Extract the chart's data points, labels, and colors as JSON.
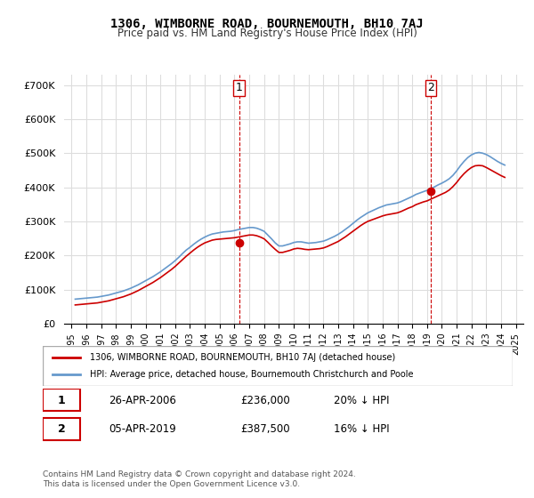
{
  "title": "1306, WIMBORNE ROAD, BOURNEMOUTH, BH10 7AJ",
  "subtitle": "Price paid vs. HM Land Registry's House Price Index (HPI)",
  "ylabel_ticks": [
    "£0",
    "£100K",
    "£200K",
    "£300K",
    "£400K",
    "£500K",
    "£600K",
    "£700K"
  ],
  "ytick_values": [
    0,
    100000,
    200000,
    300000,
    400000,
    500000,
    600000,
    700000
  ],
  "ylim": [
    0,
    730000
  ],
  "xlim_start": 1994.5,
  "xlim_end": 2025.5,
  "hpi_years": [
    1995.25,
    1995.5,
    1995.75,
    1996.0,
    1996.25,
    1996.5,
    1996.75,
    1997.0,
    1997.25,
    1997.5,
    1997.75,
    1998.0,
    1998.25,
    1998.5,
    1998.75,
    1999.0,
    1999.25,
    1999.5,
    1999.75,
    2000.0,
    2000.25,
    2000.5,
    2000.75,
    2001.0,
    2001.25,
    2001.5,
    2001.75,
    2002.0,
    2002.25,
    2002.5,
    2002.75,
    2003.0,
    2003.25,
    2003.5,
    2003.75,
    2004.0,
    2004.25,
    2004.5,
    2004.75,
    2005.0,
    2005.25,
    2005.5,
    2005.75,
    2006.0,
    2006.25,
    2006.5,
    2006.75,
    2007.0,
    2007.25,
    2007.5,
    2007.75,
    2008.0,
    2008.25,
    2008.5,
    2008.75,
    2009.0,
    2009.25,
    2009.5,
    2009.75,
    2010.0,
    2010.25,
    2010.5,
    2010.75,
    2011.0,
    2011.25,
    2011.5,
    2011.75,
    2012.0,
    2012.25,
    2012.5,
    2012.75,
    2013.0,
    2013.25,
    2013.5,
    2013.75,
    2014.0,
    2014.25,
    2014.5,
    2014.75,
    2015.0,
    2015.25,
    2015.5,
    2015.75,
    2016.0,
    2016.25,
    2016.5,
    2016.75,
    2017.0,
    2017.25,
    2017.5,
    2017.75,
    2018.0,
    2018.25,
    2018.5,
    2018.75,
    2019.0,
    2019.25,
    2019.5,
    2019.75,
    2020.0,
    2020.25,
    2020.5,
    2020.75,
    2021.0,
    2021.25,
    2021.5,
    2021.75,
    2022.0,
    2022.25,
    2022.5,
    2022.75,
    2023.0,
    2023.25,
    2023.5,
    2023.75,
    2024.0,
    2024.25
  ],
  "hpi_values": [
    72000,
    73000,
    74000,
    75000,
    76000,
    77000,
    78000,
    80000,
    82000,
    84000,
    87000,
    90000,
    93000,
    96000,
    100000,
    104000,
    109000,
    114000,
    120000,
    126000,
    132000,
    138000,
    145000,
    152000,
    160000,
    168000,
    176000,
    185000,
    195000,
    206000,
    216000,
    224000,
    233000,
    241000,
    248000,
    254000,
    259000,
    263000,
    265000,
    267000,
    269000,
    270000,
    271000,
    273000,
    276000,
    278000,
    280000,
    282000,
    282000,
    280000,
    276000,
    271000,
    260000,
    249000,
    237000,
    228000,
    228000,
    231000,
    234000,
    238000,
    240000,
    240000,
    238000,
    236000,
    237000,
    238000,
    240000,
    242000,
    246000,
    251000,
    256000,
    262000,
    269000,
    277000,
    285000,
    294000,
    303000,
    311000,
    318000,
    325000,
    330000,
    335000,
    340000,
    344000,
    348000,
    350000,
    352000,
    354000,
    358000,
    363000,
    368000,
    373000,
    379000,
    383000,
    387000,
    391000,
    396000,
    401000,
    407000,
    412000,
    418000,
    425000,
    435000,
    448000,
    463000,
    476000,
    487000,
    495000,
    500000,
    502000,
    500000,
    496000,
    490000,
    483000,
    476000,
    470000,
    465000
  ],
  "property_years": [
    1995.25,
    1995.5,
    1995.75,
    1996.0,
    1996.25,
    1996.5,
    1996.75,
    1997.0,
    1997.25,
    1997.5,
    1997.75,
    1998.0,
    1998.25,
    1998.5,
    1998.75,
    1999.0,
    1999.25,
    1999.5,
    1999.75,
    2000.0,
    2000.25,
    2000.5,
    2000.75,
    2001.0,
    2001.25,
    2001.5,
    2001.75,
    2002.0,
    2002.25,
    2002.5,
    2002.75,
    2003.0,
    2003.25,
    2003.5,
    2003.75,
    2004.0,
    2004.25,
    2004.5,
    2004.75,
    2005.0,
    2005.25,
    2005.5,
    2005.75,
    2006.0,
    2006.25,
    2006.5,
    2006.75,
    2007.0,
    2007.25,
    2007.5,
    2007.75,
    2008.0,
    2008.25,
    2008.5,
    2008.75,
    2009.0,
    2009.25,
    2009.5,
    2009.75,
    2010.0,
    2010.25,
    2010.5,
    2010.75,
    2011.0,
    2011.25,
    2011.5,
    2011.75,
    2012.0,
    2012.25,
    2012.5,
    2012.75,
    2013.0,
    2013.25,
    2013.5,
    2013.75,
    2014.0,
    2014.25,
    2014.5,
    2014.75,
    2015.0,
    2015.25,
    2015.5,
    2015.75,
    2016.0,
    2016.25,
    2016.5,
    2016.75,
    2017.0,
    2017.25,
    2017.5,
    2017.75,
    2018.0,
    2018.25,
    2018.5,
    2018.75,
    2019.0,
    2019.25,
    2019.5,
    2019.75,
    2020.0,
    2020.25,
    2020.5,
    2020.75,
    2021.0,
    2021.25,
    2021.5,
    2021.75,
    2022.0,
    2022.25,
    2022.5,
    2022.75,
    2023.0,
    2023.25,
    2023.5,
    2023.75,
    2024.0,
    2024.25
  ],
  "property_values": [
    55000,
    56000,
    57000,
    58000,
    59000,
    60000,
    61000,
    63000,
    65000,
    67000,
    70000,
    73000,
    76000,
    79000,
    83000,
    87000,
    92000,
    97000,
    103000,
    109000,
    115000,
    121000,
    128000,
    135000,
    143000,
    151000,
    159000,
    168000,
    178000,
    188000,
    198000,
    207000,
    216000,
    224000,
    231000,
    237000,
    241000,
    245000,
    247000,
    248000,
    249000,
    250000,
    251000,
    252000,
    254000,
    256000,
    258000,
    260000,
    260000,
    258000,
    254000,
    249000,
    239000,
    228000,
    218000,
    209000,
    209000,
    212000,
    215000,
    219000,
    221000,
    220000,
    218000,
    217000,
    218000,
    219000,
    220000,
    222000,
    226000,
    231000,
    236000,
    241000,
    248000,
    255000,
    263000,
    271000,
    279000,
    287000,
    294000,
    300000,
    304000,
    308000,
    312000,
    316000,
    319000,
    321000,
    323000,
    325000,
    329000,
    334000,
    339000,
    343000,
    349000,
    353000,
    357000,
    360000,
    365000,
    370000,
    375000,
    380000,
    385000,
    392000,
    402000,
    414000,
    428000,
    440000,
    450000,
    458000,
    463000,
    464000,
    463000,
    458000,
    452000,
    446000,
    440000,
    434000,
    429000
  ],
  "sale1_x": 2006.33,
  "sale1_y": 236000,
  "sale2_x": 2019.25,
  "sale2_y": 387500,
  "sale1_vline_x": 2006.33,
  "sale2_vline_x": 2019.25,
  "line_color_property": "#cc0000",
  "line_color_hpi": "#6699cc",
  "marker_color": "#cc0000",
  "vline_color": "#cc0000",
  "grid_color": "#dddddd",
  "background_color": "#ffffff",
  "legend_label_property": "1306, WIMBORNE ROAD, BOURNEMOUTH, BH10 7AJ (detached house)",
  "legend_label_hpi": "HPI: Average price, detached house, Bournemouth Christchurch and Poole",
  "annotation1_num": "1",
  "annotation1_date": "26-APR-2006",
  "annotation1_price": "£236,000",
  "annotation1_hpi": "20% ↓ HPI",
  "annotation2_num": "2",
  "annotation2_date": "05-APR-2019",
  "annotation2_price": "£387,500",
  "annotation2_hpi": "16% ↓ HPI",
  "footer": "Contains HM Land Registry data © Crown copyright and database right 2024.\nThis data is licensed under the Open Government Licence v3.0.",
  "xtick_years": [
    1995,
    1996,
    1997,
    1998,
    1999,
    2000,
    2001,
    2002,
    2003,
    2004,
    2005,
    2006,
    2007,
    2008,
    2009,
    2010,
    2011,
    2012,
    2013,
    2014,
    2015,
    2016,
    2017,
    2018,
    2019,
    2020,
    2021,
    2022,
    2023,
    2024,
    2025
  ]
}
